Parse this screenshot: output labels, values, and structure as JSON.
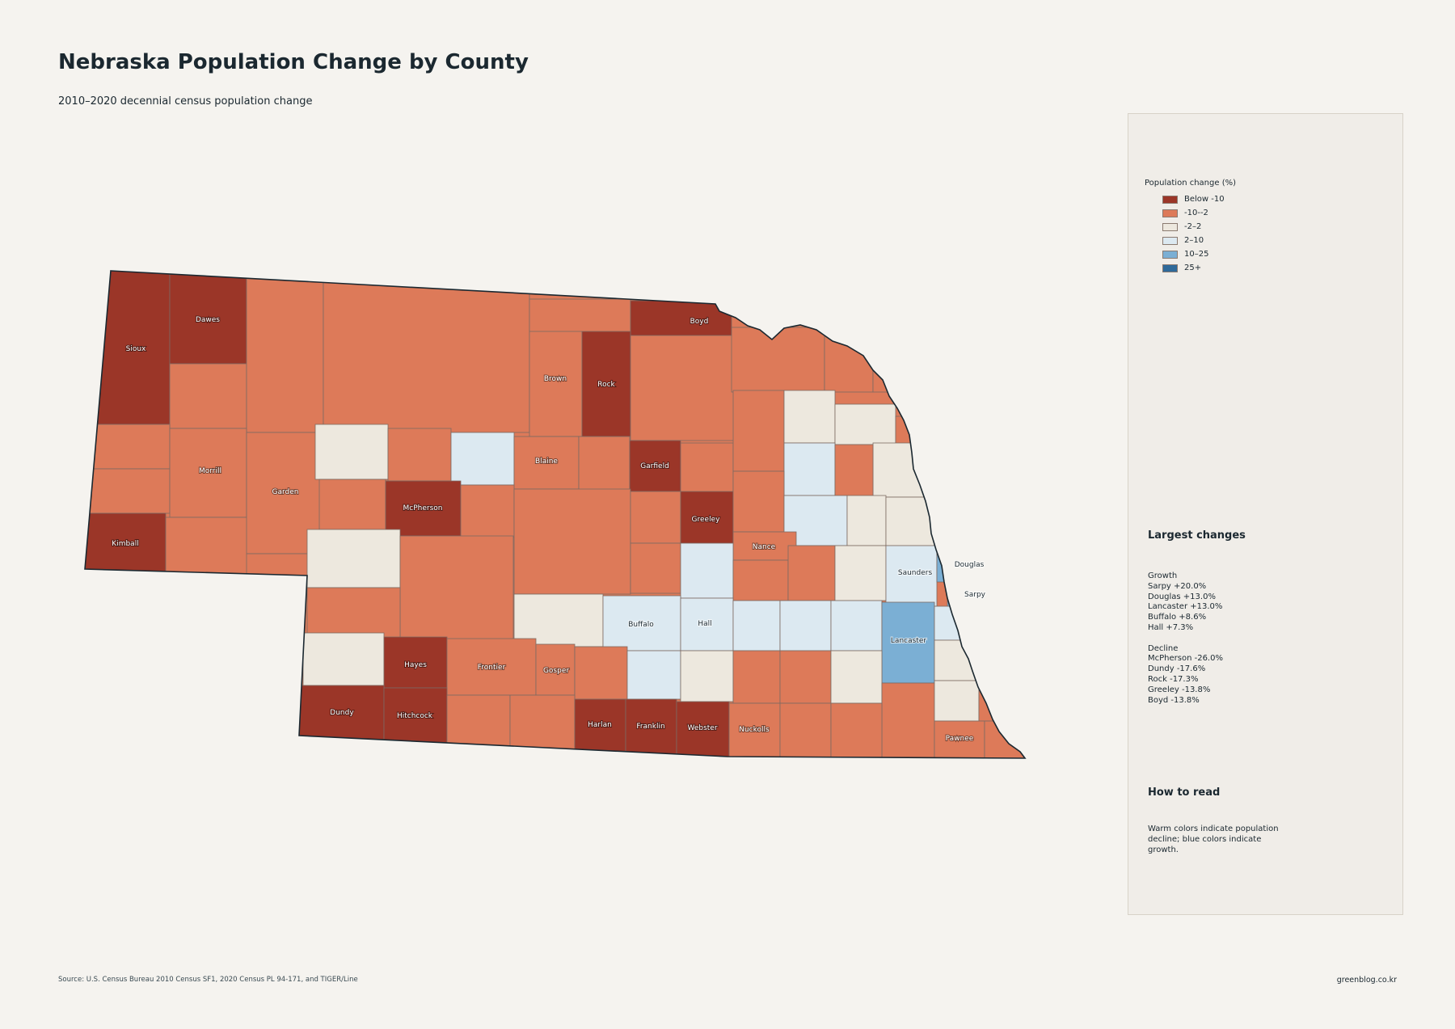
{
  "title": "Nebraska Population Change by County",
  "subtitle": "2010–2020 decennial census population change",
  "legend": {
    "title": "Population change (%)",
    "items": [
      {
        "label": "Below -10",
        "color": "#9b3628"
      },
      {
        "label": "-10--2",
        "color": "#dd7a59"
      },
      {
        "label": "-2–2",
        "color": "#ede8de"
      },
      {
        "label": "2–10",
        "color": "#dce9f1"
      },
      {
        "label": "10–25",
        "color": "#7bafd4"
      },
      {
        "label": "25+",
        "color": "#2f6a9a"
      }
    ]
  },
  "county_labels": [
    "Sioux",
    "Dawes",
    "Boyd",
    "Brown",
    "Rock",
    "Morrill",
    "Garden",
    "Blaine",
    "Garfield",
    "McPherson",
    "Greeley",
    "Kimball",
    "Nance",
    "Douglas",
    "Saunders",
    "Sarpy",
    "Buffalo",
    "Hall",
    "Lancaster",
    "Hayes",
    "Frontier",
    "Gosper",
    "Dundy",
    "Hitchcock",
    "Harlan",
    "Franklin",
    "Webster",
    "Nuckolls",
    "Pawnee"
  ],
  "largest_changes": {
    "heading": "Largest changes",
    "growth_label": "Growth",
    "growth": [
      "Sarpy  +20.0%",
      "Douglas  +13.0%",
      "Lancaster  +13.0%",
      "Buffalo  +8.6%",
      "Hall  +7.3%"
    ],
    "decline_label": "Decline",
    "decline": [
      "McPherson  -26.0%",
      "Dundy  -17.6%",
      "Rock  -17.3%",
      "Greeley  -13.8%",
      "Boyd  -13.8%"
    ]
  },
  "how_to_read": {
    "heading": "How to read",
    "text": "Warm colors indicate population decline; blue colors indicate growth."
  },
  "source": "Source: U.S. Census Bureau 2010 Census SF1, 2020 Census PL 94-171, and TIGER/Line",
  "credit": "greenblog.co.kr"
}
